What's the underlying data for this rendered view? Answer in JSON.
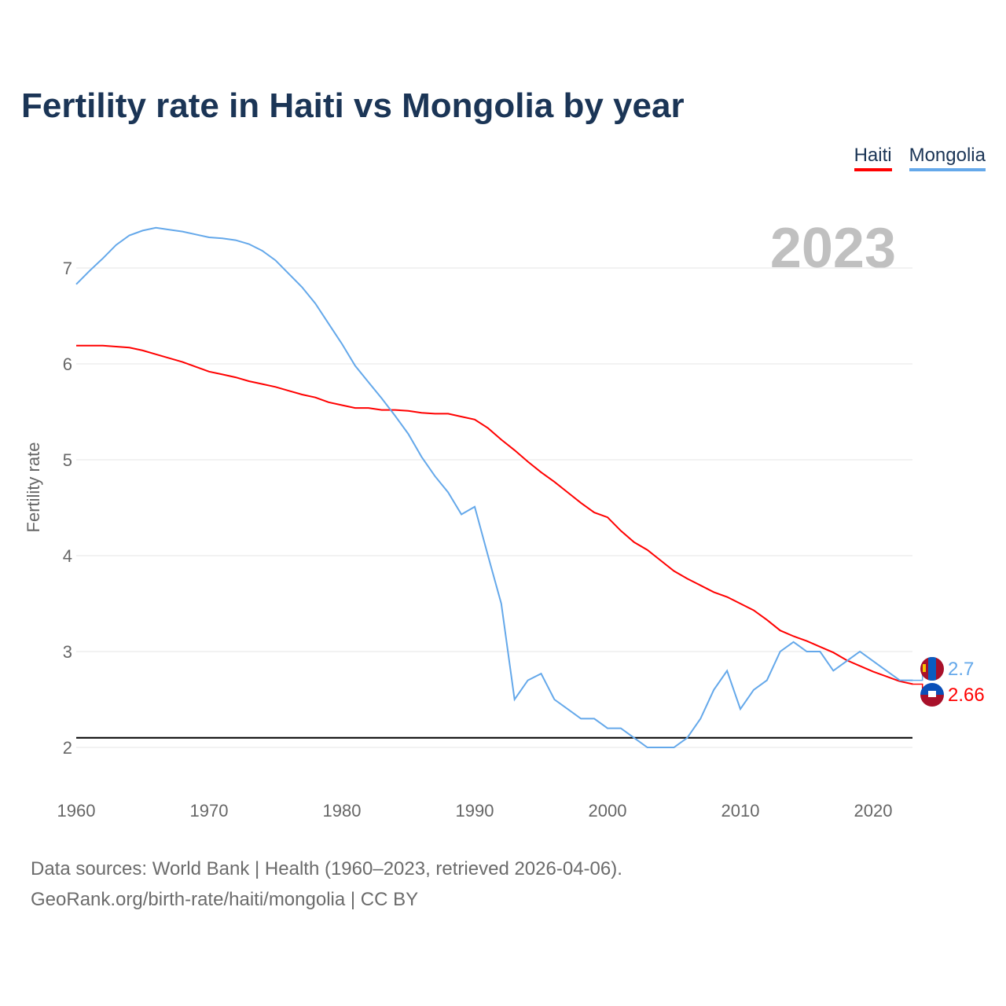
{
  "title": "Fertility rate in Haiti vs Mongolia by year",
  "year_badge": "2023",
  "footer": {
    "line1": "Data sources: World Bank | Health (1960–2023, retrieved 2026-04-06).",
    "line2": "GeoRank.org/birth-rate/haiti/mongolia | CC BY"
  },
  "chart_data": {
    "type": "line",
    "title": "Fertility rate in Haiti vs Mongolia by year",
    "xlabel": "",
    "ylabel": "Fertility rate",
    "xlim": [
      1960,
      2023
    ],
    "ylim": [
      1.6,
      7.6
    ],
    "xticks": [
      1960,
      1970,
      1980,
      1990,
      2000,
      2010,
      2020
    ],
    "yticks": [
      2,
      3,
      4,
      5,
      6,
      7
    ],
    "grid": true,
    "legend_position": "top-right",
    "reference_line": 2.1,
    "x_start": 1960,
    "series": [
      {
        "name": "Haiti",
        "color": "#ff0000",
        "end_label": "2.66",
        "values": [
          6.19,
          6.19,
          6.19,
          6.18,
          6.17,
          6.14,
          6.1,
          6.06,
          6.02,
          5.97,
          5.92,
          5.89,
          5.86,
          5.82,
          5.79,
          5.76,
          5.72,
          5.68,
          5.65,
          5.6,
          5.57,
          5.54,
          5.54,
          5.52,
          5.52,
          5.51,
          5.49,
          5.48,
          5.48,
          5.45,
          5.42,
          5.33,
          5.21,
          5.1,
          4.98,
          4.87,
          4.77,
          4.66,
          4.55,
          4.45,
          4.4,
          4.26,
          4.14,
          4.06,
          3.95,
          3.84,
          3.76,
          3.69,
          3.62,
          3.57,
          3.5,
          3.43,
          3.33,
          3.22,
          3.16,
          3.11,
          3.05,
          2.99,
          2.91,
          2.85,
          2.79,
          2.74,
          2.69,
          2.66
        ]
      },
      {
        "name": "Mongolia",
        "color": "#64a8ea",
        "end_label": "2.7",
        "values": [
          6.83,
          6.97,
          7.1,
          7.24,
          7.34,
          7.39,
          7.42,
          7.4,
          7.38,
          7.35,
          7.32,
          7.31,
          7.29,
          7.25,
          7.18,
          7.08,
          6.94,
          6.8,
          6.63,
          6.42,
          6.21,
          5.98,
          5.81,
          5.64,
          5.46,
          5.27,
          5.03,
          4.83,
          4.66,
          4.43,
          4.51,
          4.0,
          3.5,
          2.5,
          2.7,
          2.77,
          2.5,
          2.4,
          2.3,
          2.3,
          2.2,
          2.2,
          2.1,
          2.0,
          2.0,
          2.0,
          2.1,
          2.3,
          2.6,
          2.8,
          2.4,
          2.6,
          2.7,
          3.0,
          3.1,
          3.0,
          3.0,
          2.8,
          2.9,
          3.0,
          2.9,
          2.8,
          2.7,
          2.7
        ]
      }
    ]
  }
}
